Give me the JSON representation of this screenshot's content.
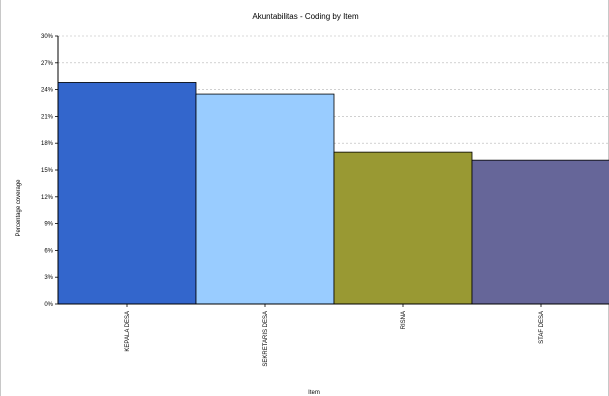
{
  "chart_data": {
    "type": "bar",
    "title": "Akuntabilitas - Coding by Item",
    "xlabel": "Item",
    "ylabel": "Percentage coverage",
    "categories": [
      "KEPALA DESA",
      "SEKRETARIS DESA",
      "RISNA",
      "STAF DESA"
    ],
    "values": [
      24.8,
      23.5,
      17.0,
      16.1
    ],
    "ylim": [
      0,
      30
    ],
    "yticks": [
      "0%",
      "3%",
      "6%",
      "9%",
      "12%",
      "15%",
      "18%",
      "21%",
      "24%",
      "27%",
      "30%"
    ],
    "grid": true,
    "colors": [
      "#3366cc",
      "#99ccff",
      "#999933",
      "#666699"
    ]
  }
}
